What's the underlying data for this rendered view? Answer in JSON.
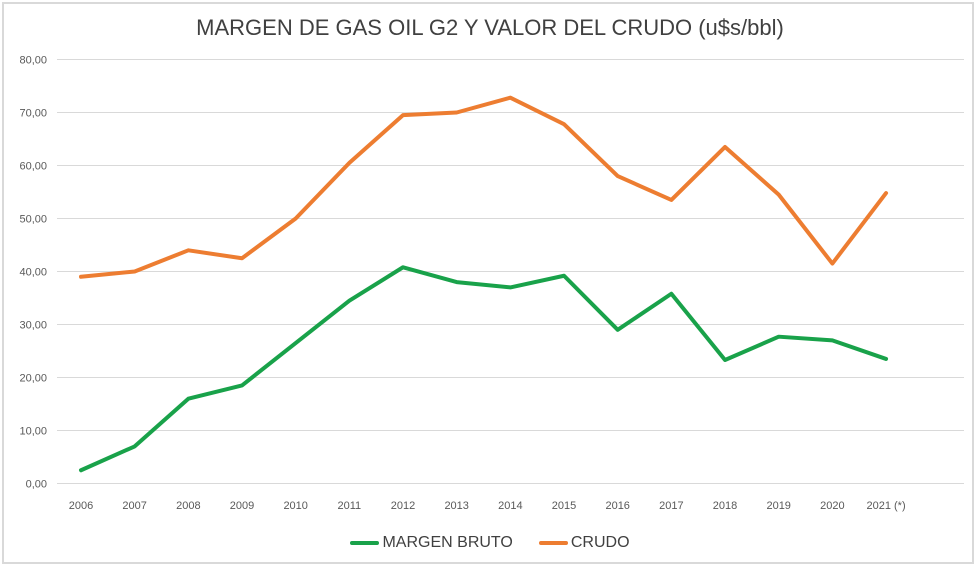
{
  "page": {
    "background": "#ffffff",
    "frame_border_color": "#d9d9d9"
  },
  "chart_data": {
    "type": "line",
    "title": "MARGEN DE GAS OIL G2 Y VALOR DEL CRUDO (u$s/bbl)",
    "categories": [
      "2006",
      "2007",
      "2008",
      "2009",
      "2010",
      "2011",
      "2012",
      "2013",
      "2014",
      "2015",
      "2016",
      "2017",
      "2018",
      "2019",
      "2020",
      "2021 (*)"
    ],
    "series": [
      {
        "name": "MARGEN BRUTO",
        "color": "#19a24a",
        "values": [
          2.5,
          7.0,
          16.0,
          18.5,
          26.5,
          34.5,
          40.8,
          38.0,
          37.0,
          39.2,
          29.0,
          35.8,
          23.3,
          27.7,
          27.0,
          23.5
        ]
      },
      {
        "name": "CRUDO",
        "color": "#ed7d31",
        "values": [
          39.0,
          40.0,
          44.0,
          42.5,
          50.0,
          60.5,
          69.5,
          70.0,
          72.8,
          67.8,
          58.0,
          53.5,
          63.5,
          54.5,
          41.5,
          54.8
        ]
      }
    ],
    "xlabel": "",
    "ylabel": "",
    "ylim": [
      0,
      80
    ],
    "y_ticks": [
      0,
      10,
      20,
      30,
      40,
      50,
      60,
      70,
      80
    ],
    "y_tick_labels": [
      "0,00",
      "10,00",
      "20,00",
      "30,00",
      "40,00",
      "50,00",
      "60,00",
      "70,00",
      "80,00"
    ],
    "grid": true,
    "gridline_color": "#d9d9d9",
    "tick_label_color": "#595959",
    "legend_position": "bottom"
  }
}
